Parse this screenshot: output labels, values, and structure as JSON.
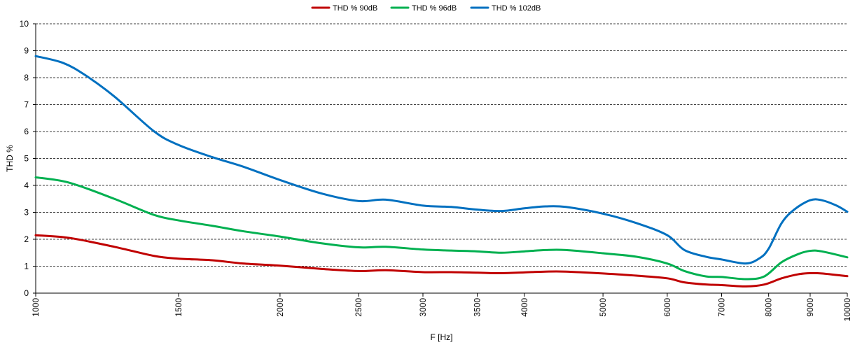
{
  "chart_data": {
    "type": "line",
    "title": "",
    "xlabel": "F [Hz]",
    "ylabel": "THD %",
    "x_scale": "log",
    "xlim": [
      1000,
      10000
    ],
    "ylim": [
      0,
      10
    ],
    "y_ticks": [
      0,
      1,
      2,
      3,
      4,
      5,
      6,
      7,
      8,
      9,
      10
    ],
    "x_ticks": [
      1000,
      1500,
      2000,
      2500,
      3000,
      3500,
      4000,
      5000,
      6000,
      7000,
      8000,
      9000,
      10000
    ],
    "x_tick_labels": [
      "1000",
      "1500",
      "2000",
      "2500",
      "3000",
      "3500",
      "4000",
      "5000",
      "6000",
      "7000",
      "8000",
      "9000",
      "10000"
    ],
    "grid": "horizontal",
    "legend_position": "top",
    "series": [
      {
        "name": "THD % 90dB",
        "color": "#c00000",
        "x": [
          1000,
          1100,
          1250,
          1400,
          1500,
          1650,
          1800,
          2000,
          2250,
          2500,
          2700,
          3000,
          3250,
          3500,
          3750,
          4000,
          4250,
          4500,
          5000,
          5500,
          6000,
          6300,
          6700,
          7000,
          7500,
          7900,
          8300,
          8700,
          9000,
          9300,
          10000
        ],
        "y": [
          2.15,
          2.05,
          1.72,
          1.38,
          1.28,
          1.22,
          1.1,
          1.02,
          0.9,
          0.82,
          0.85,
          0.78,
          0.78,
          0.76,
          0.74,
          0.77,
          0.8,
          0.8,
          0.73,
          0.65,
          0.55,
          0.4,
          0.32,
          0.3,
          0.25,
          0.32,
          0.55,
          0.7,
          0.74,
          0.73,
          0.63
        ]
      },
      {
        "name": "THD % 96dB",
        "color": "#00b050",
        "x": [
          1000,
          1100,
          1250,
          1400,
          1500,
          1650,
          1800,
          2000,
          2250,
          2500,
          2700,
          3000,
          3250,
          3500,
          3750,
          4000,
          4250,
          4500,
          5000,
          5500,
          6000,
          6300,
          6700,
          7000,
          7500,
          7900,
          8300,
          8700,
          9000,
          9300,
          10000
        ],
        "y": [
          4.3,
          4.1,
          3.5,
          2.9,
          2.7,
          2.5,
          2.3,
          2.1,
          1.85,
          1.7,
          1.72,
          1.62,
          1.58,
          1.55,
          1.5,
          1.55,
          1.6,
          1.6,
          1.48,
          1.35,
          1.1,
          0.82,
          0.62,
          0.6,
          0.52,
          0.62,
          1.15,
          1.45,
          1.57,
          1.55,
          1.33
        ]
      },
      {
        "name": "THD % 102dB",
        "color": "#0070c0",
        "x": [
          1000,
          1080,
          1150,
          1250,
          1400,
          1500,
          1650,
          1800,
          2000,
          2250,
          2500,
          2700,
          3000,
          3250,
          3500,
          3750,
          4000,
          4250,
          4500,
          5000,
          5500,
          6000,
          6300,
          6700,
          7000,
          7500,
          7800,
          8000,
          8300,
          8600,
          9000,
          9300,
          9700,
          10000
        ],
        "y": [
          8.8,
          8.55,
          8.1,
          7.3,
          6.0,
          5.5,
          5.05,
          4.7,
          4.2,
          3.7,
          3.42,
          3.47,
          3.25,
          3.2,
          3.1,
          3.05,
          3.15,
          3.22,
          3.2,
          2.95,
          2.6,
          2.15,
          1.6,
          1.35,
          1.25,
          1.1,
          1.3,
          1.65,
          2.6,
          3.1,
          3.45,
          3.45,
          3.25,
          3.02
        ]
      }
    ]
  }
}
